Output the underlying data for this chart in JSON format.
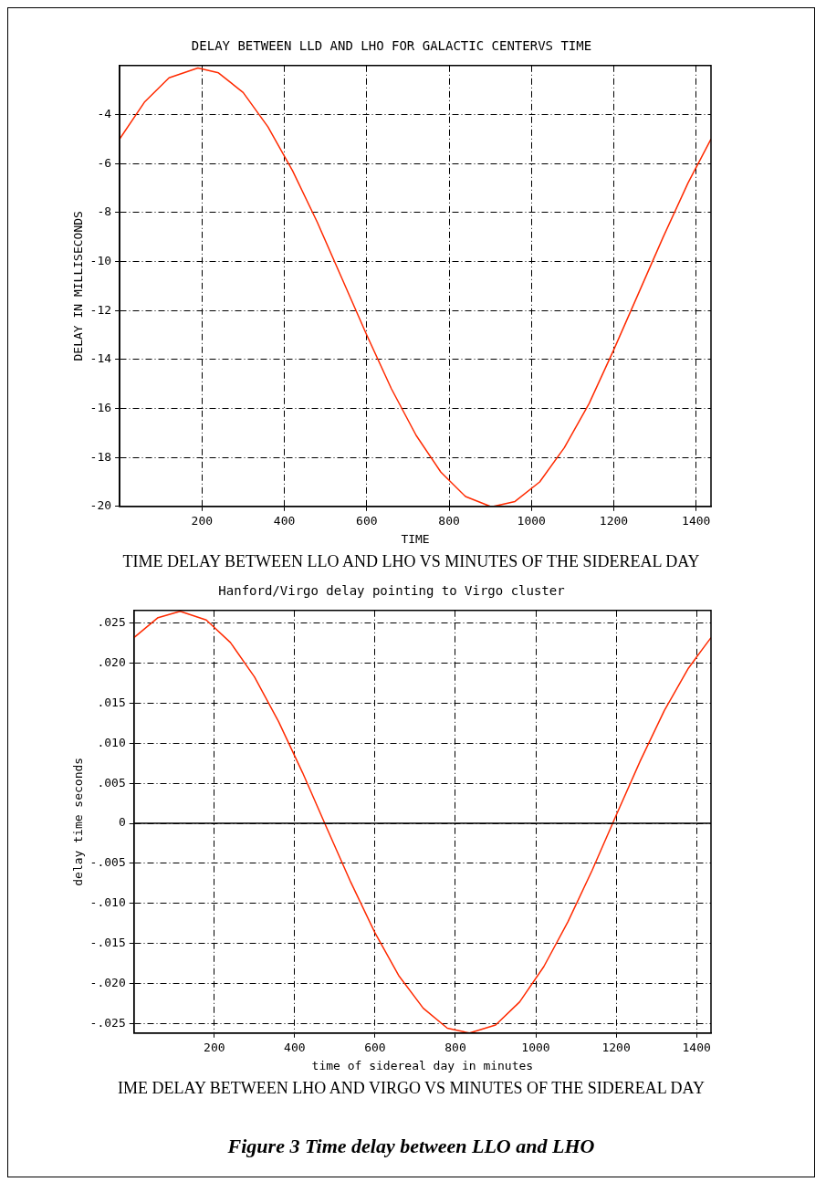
{
  "chart_data": [
    {
      "type": "line",
      "title": "DELAY BETWEEN LLD AND LHO FOR GALACTIC CENTERVS TIME",
      "xlabel": "TIME",
      "ylabel": "DELAY IN MILLISECONDS",
      "x": [
        0,
        60,
        120,
        190,
        240,
        300,
        360,
        420,
        480,
        540,
        600,
        660,
        720,
        780,
        840,
        900,
        908,
        960,
        1020,
        1080,
        1140,
        1200,
        1260,
        1320,
        1380,
        1436
      ],
      "series": [
        {
          "color": "#ff2a00",
          "values": [
            -5.0,
            -3.5,
            -2.5,
            -2.1,
            -2.3,
            -3.1,
            -4.5,
            -6.3,
            -8.4,
            -10.7,
            -13.0,
            -15.2,
            -17.1,
            -18.6,
            -19.6,
            -20.0,
            -20.0,
            -19.8,
            -19.0,
            -17.6,
            -15.8,
            -13.6,
            -11.3,
            -9.0,
            -6.8,
            -5.0
          ]
        }
      ],
      "xlim": [
        0,
        1436
      ],
      "xticks": [
        200,
        400,
        600,
        800,
        1000,
        1200,
        1400
      ],
      "ylim": [
        -20,
        -2.0
      ],
      "yticks": [
        -4,
        -6,
        -8,
        -10,
        -12,
        -14,
        -16,
        -18,
        -20
      ],
      "grid": true,
      "legend": false,
      "marker": "none",
      "line_style": "solid",
      "annotations": [
        "TIME DELAY BETWEEN LLO AND LHO VS MINUTES OF THE SIDEREAL DAY"
      ]
    },
    {
      "type": "line",
      "title": "Hanford/Virgo delay pointing to Virgo cluster",
      "xlabel": "time of sidereal day in minutes",
      "ylabel": "delay time seconds",
      "x": [
        0,
        60,
        115,
        180,
        240,
        300,
        360,
        420,
        480,
        540,
        600,
        660,
        720,
        780,
        835,
        900,
        960,
        1020,
        1080,
        1140,
        1200,
        1260,
        1320,
        1380,
        1436
      ],
      "series": [
        {
          "color": "#ff2a00",
          "values": [
            0.0232,
            0.0257,
            0.0265,
            0.0254,
            0.0226,
            0.0183,
            0.0127,
            0.0063,
            -0.0006,
            -0.0074,
            -0.0137,
            -0.0191,
            -0.0231,
            -0.0256,
            -0.0262,
            -0.0252,
            -0.0223,
            -0.0179,
            -0.0123,
            -0.0059,
            0.001,
            0.0078,
            0.0141,
            0.0194,
            0.0232
          ]
        }
      ],
      "xlim": [
        0,
        1436
      ],
      "xticks": [
        200,
        400,
        600,
        800,
        1000,
        1200,
        1400
      ],
      "ylim": [
        -0.0262,
        0.0266
      ],
      "yticks": [
        {
          "value": 0.025,
          "label": ".025"
        },
        {
          "value": 0.02,
          "label": ".020"
        },
        {
          "value": 0.015,
          "label": ".015"
        },
        {
          "value": 0.01,
          "label": ".010"
        },
        {
          "value": 0.005,
          "label": ".005"
        },
        0,
        {
          "value": -0.005,
          "label": "-.005"
        },
        {
          "value": -0.01,
          "label": "-.010"
        },
        {
          "value": -0.015,
          "label": "-.015"
        },
        {
          "value": -0.02,
          "label": "-.020"
        },
        {
          "value": -0.025,
          "label": "-.025"
        }
      ],
      "ref_lines": [
        {
          "axis": "y",
          "value": 0,
          "color": "#000000",
          "line_style": "solid"
        }
      ],
      "grid": true,
      "legend": false,
      "marker": "none",
      "line_style": "solid",
      "annotations": [
        "IME DELAY BETWEEN LHO AND VIRGO VS MINUTES OF THE SIDEREAL DAY",
        "Figure 3 Time delay between LLO and LHO"
      ]
    }
  ]
}
